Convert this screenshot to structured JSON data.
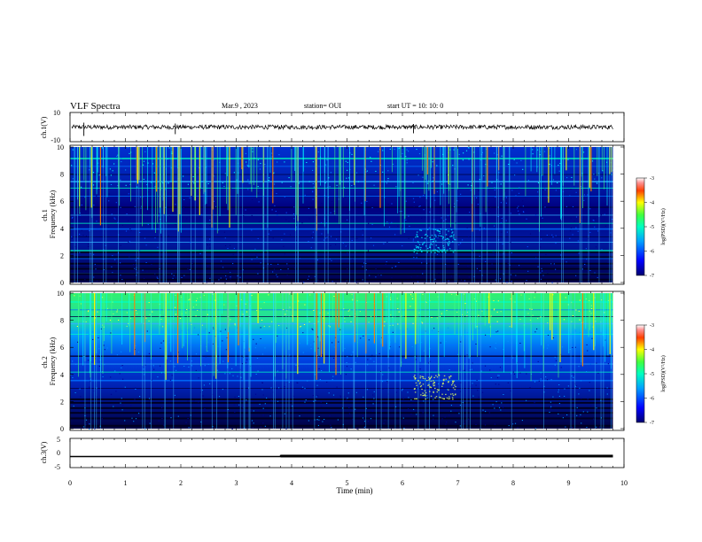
{
  "header": {
    "title": "VLF Spectra",
    "date": "Mar.9 , 2023",
    "station": "station= OUI",
    "start": "start UT = 10: 10: 0"
  },
  "chart_data": [
    {
      "type": "line",
      "panel": "ch1-waveform",
      "ylabel": "ch.1(V)",
      "ylim": [
        -10,
        10
      ],
      "yticks": [
        "10",
        "-10"
      ],
      "description_values": {
        "baseline_v": 0,
        "noise_amplitude_v": 1.5
      }
    },
    {
      "type": "heatmap",
      "panel": "ch1-spectrogram",
      "ylabel": "ch.1 Frequency (kHz)",
      "ylim": [
        0,
        10
      ],
      "yticks": [
        "0",
        "2",
        "4",
        "6",
        "8",
        "10"
      ],
      "colorbar": {
        "label": "log(PSD)(V²/Hz)",
        "range": [
          -7,
          -3
        ],
        "ticks": [
          "-3",
          "-4",
          "-5",
          "-6",
          "-7"
        ]
      }
    },
    {
      "type": "heatmap",
      "panel": "ch2-spectrogram",
      "ylabel": "ch.2 Frequency (kHz)",
      "ylim": [
        0,
        10
      ],
      "yticks": [
        "0",
        "2",
        "4",
        "6",
        "8",
        "10"
      ],
      "colorbar": {
        "label": "log(PSD)(V²/Hz)",
        "range": [
          -7,
          -3
        ],
        "ticks": [
          "-3",
          "-4",
          "-5",
          "-6",
          "-7"
        ]
      }
    },
    {
      "type": "line",
      "panel": "ch3-waveform",
      "ylabel": "ch.3(V)",
      "ylim": [
        -5,
        5
      ],
      "yticks": [
        "5",
        "0",
        "-5"
      ],
      "x": [
        0,
        3.8,
        3.8,
        9.8
      ],
      "y": [
        -1.2,
        -1.2,
        -0.9,
        -0.9
      ]
    }
  ],
  "xaxis": {
    "label": "Time (min)",
    "xlim": [
      0,
      10
    ],
    "ticks": [
      "0",
      "1",
      "2",
      "3",
      "4",
      "5",
      "6",
      "7",
      "8",
      "9",
      "10"
    ]
  },
  "colors": {
    "colormap": [
      "#00007f",
      "#0000ff",
      "#007fff",
      "#00ffff",
      "#7fff7f",
      "#ffff00",
      "#ff7f00",
      "#ff0000",
      "#ffffff"
    ]
  }
}
